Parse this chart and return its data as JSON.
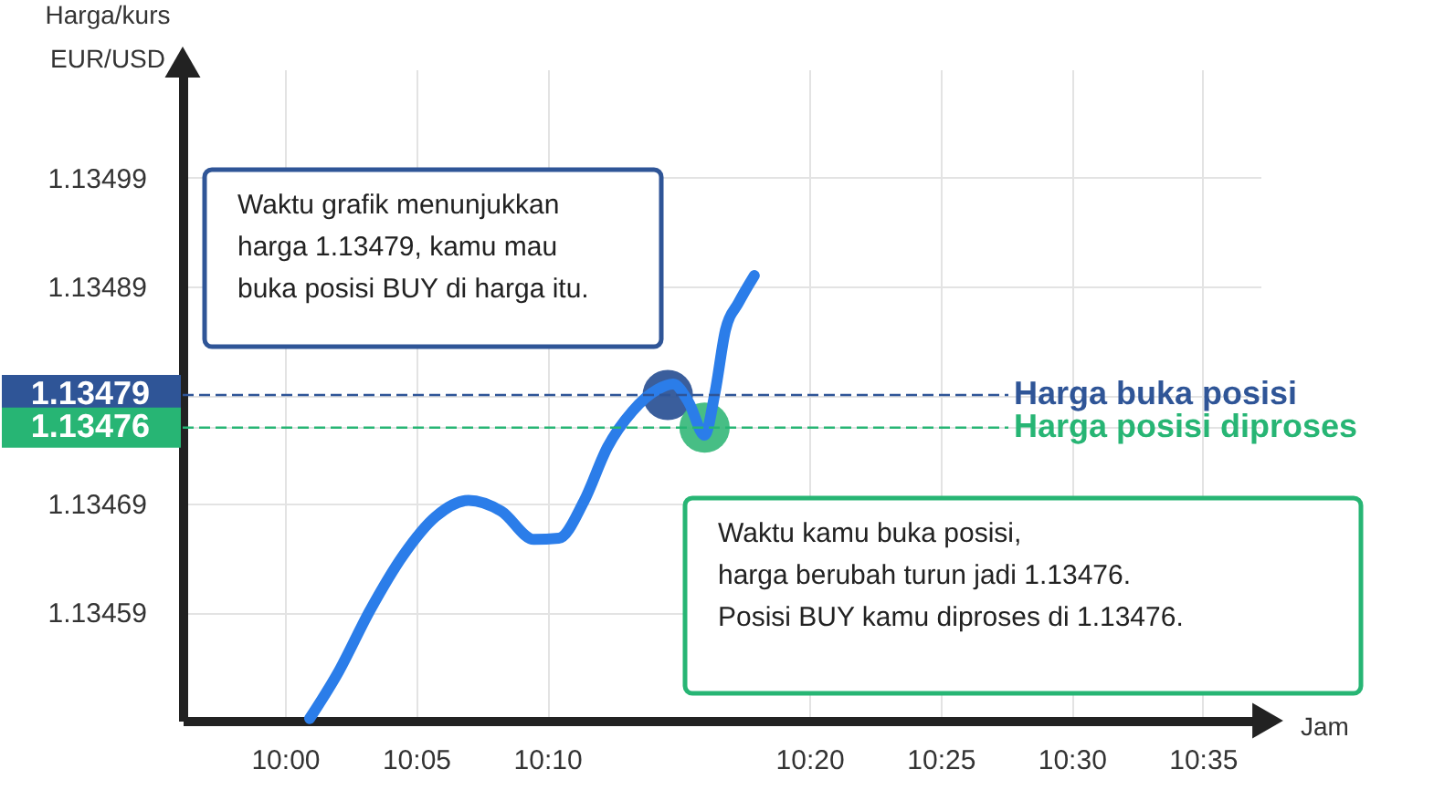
{
  "chart_data": {
    "type": "line",
    "ylabel": "Harga/kurs\nEUR/USD",
    "xlabel": "Jam",
    "xlim": [
      9.935,
      10.62
    ],
    "ylim": [
      1.13449,
      1.13509
    ],
    "xticks": [
      {
        "value": 10.0,
        "label": "10:00"
      },
      {
        "value": 10.0833,
        "label": "10:05"
      },
      {
        "value": 10.1667,
        "label": "10:10"
      },
      {
        "value": 10.3333,
        "label": "10:20"
      },
      {
        "value": 10.4167,
        "label": "10:25"
      },
      {
        "value": 10.5,
        "label": "10:30"
      },
      {
        "value": 10.5833,
        "label": "10:35"
      }
    ],
    "yticks": [
      1.13459,
      1.13469,
      1.13476,
      1.13479,
      1.13489,
      1.13499
    ],
    "grid": true,
    "series": [
      {
        "color": "#2b7de9",
        "marker": "none",
        "x": [
          10.0157,
          10.0333,
          10.0542,
          10.075,
          10.0958,
          10.1167,
          10.1375,
          10.1583,
          10.174,
          10.19,
          10.205,
          10.2208,
          10.2367,
          10.2467,
          10.2567,
          10.2667,
          10.2733,
          10.28,
          10.2883,
          10.2983
        ],
        "values": [
          1.134492,
          1.134533,
          1.134592,
          1.134642,
          1.134678,
          1.134693,
          1.134683,
          1.134657,
          1.134658,
          1.134692,
          1.134742,
          1.134775,
          1.134795,
          1.1348,
          1.134783,
          1.134753,
          1.134792,
          1.13485,
          1.134875,
          1.1349
        ]
      },
      {
        "type": "scatter",
        "marker": "circle",
        "x": [
          10.2433,
          10.2667
        ],
        "values": [
          1.13479,
          1.13476
        ],
        "colors": [
          "#2f5597",
          "#3dbb7e"
        ]
      }
    ],
    "ref_lines": [
      {
        "axis": "y",
        "value": 1.13479,
        "label": "Harga buka posisi",
        "color": "#2f5597",
        "line_style": "dashed"
      },
      {
        "axis": "y",
        "value": 1.13476,
        "label": "Harga posisi diproses",
        "color": "#27b574",
        "line_style": "dashed"
      }
    ],
    "annotations": [
      "Waktu grafik menunjukkan\nharga 1.13479, kamu mau\nbuka posisi BUY di harga itu.",
      "Waktu kamu buka posisi,\nharga berubah turun jadi 1.13476.\n\nPosisi BUY kamu diproses di 1.13476."
    ]
  }
}
